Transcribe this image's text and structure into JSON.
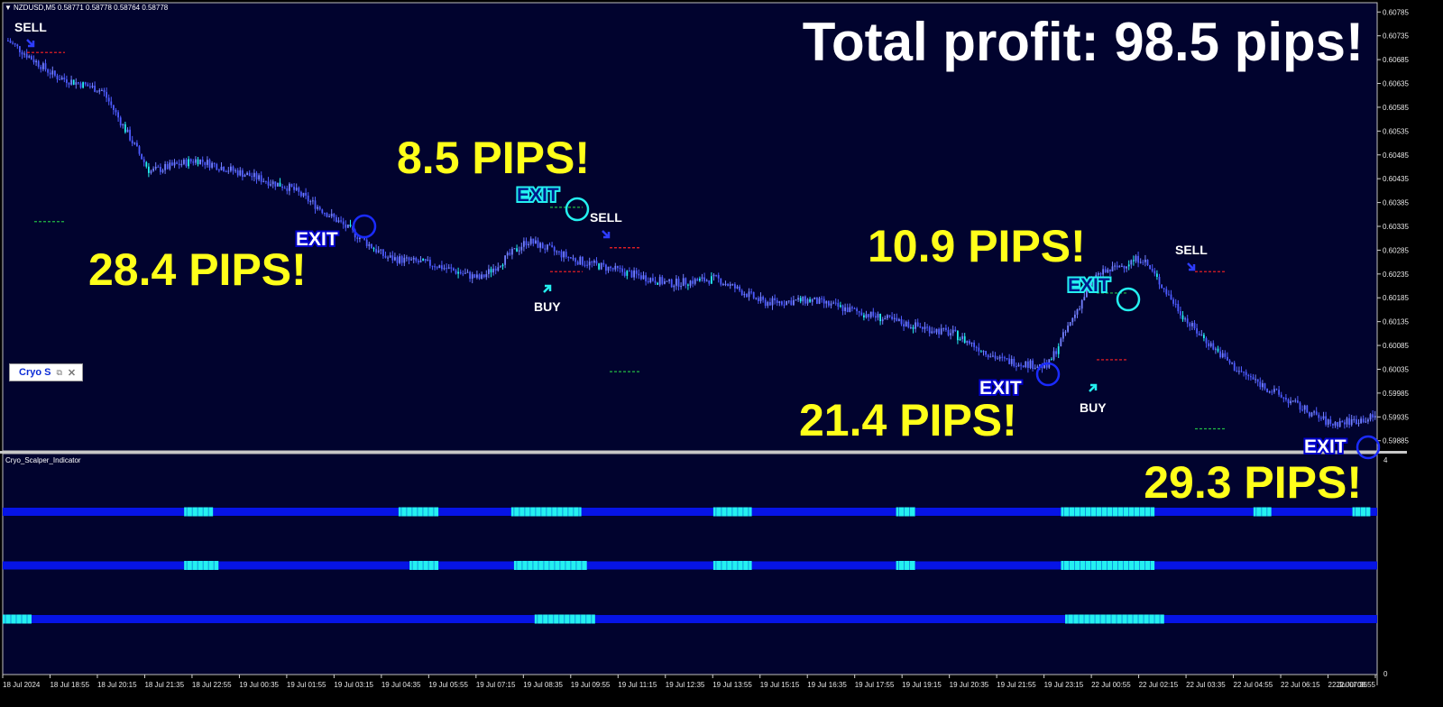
{
  "window": {
    "symbol_info": "NZDUSD,M5  0.58771 0.58778 0.58764 0.58778",
    "indicator_name": "Cryo_Scalper_Indicator",
    "indicator_axis_top": "4",
    "indicator_axis_bottom": "0"
  },
  "headline": "Total profit: 98.5 pips!",
  "price_axis": [
    "0.60785",
    "0.60735",
    "0.60685",
    "0.60635",
    "0.60585",
    "0.60535",
    "0.60485",
    "0.60435",
    "0.60385",
    "0.60335",
    "0.60285",
    "0.60235",
    "0.60185",
    "0.60135",
    "0.60085",
    "0.60035",
    "0.59985",
    "0.59935",
    "0.59885"
  ],
  "time_axis": [
    "18 Jul 2024",
    "18 Jul 18:55",
    "18 Jul 20:15",
    "18 Jul 21:35",
    "18 Jul 22:55",
    "19 Jul 00:35",
    "19 Jul 01:55",
    "19 Jul 03:15",
    "19 Jul 04:35",
    "19 Jul 05:55",
    "19 Jul 07:15",
    "19 Jul 08:35",
    "19 Jul 09:55",
    "19 Jul 11:15",
    "19 Jul 12:35",
    "19 Jul 13:55",
    "19 Jul 15:15",
    "19 Jul 16:35",
    "19 Jul 17:55",
    "19 Jul 19:15",
    "19 Jul 20:35",
    "19 Jul 21:55",
    "19 Jul 23:15",
    "22 Jul 00:55",
    "22 Jul 02:15",
    "22 Jul 03:35",
    "22 Jul 04:55",
    "22 Jul 06:15",
    "22 Jul 07:35",
    "22 Jul 08:55"
  ],
  "pips_labels": [
    "28.4 PIPS!",
    "8.5 PIPS!",
    "10.9 PIPS!",
    "21.4 PIPS!",
    "29.3 PIPS!"
  ],
  "signals": {
    "sell": "SELL",
    "buy": "BUY",
    "exit": "EXIT"
  },
  "indicator_widget": {
    "label": "Cryo S",
    "restore_icon": "restore-icon",
    "close_icon": "close-icon"
  },
  "colors": {
    "chart_bg": "#01032e",
    "candle": "#4d5bff",
    "highlight": "#24f0f0",
    "headline": "#ffffff",
    "pips": "#ffff1a",
    "indicator_line": "#0614e6",
    "sell_level": "#ff2222",
    "buy_level": "#22bb44"
  },
  "chart_data": {
    "type": "line",
    "x": [
      "18 Jul 2024",
      "18 Jul 18:55",
      "18 Jul 20:15",
      "18 Jul 21:35",
      "18 Jul 22:55",
      "19 Jul 00:35",
      "19 Jul 01:55",
      "19 Jul 03:15",
      "19 Jul 04:35",
      "19 Jul 05:55",
      "19 Jul 07:15",
      "19 Jul 08:35",
      "19 Jul 09:55",
      "19 Jul 11:15",
      "19 Jul 12:35",
      "19 Jul 13:55",
      "19 Jul 15:15",
      "19 Jul 16:35",
      "19 Jul 17:55",
      "19 Jul 19:15",
      "19 Jul 20:35",
      "19 Jul 21:55",
      "19 Jul 23:15",
      "22 Jul 00:55",
      "22 Jul 02:15",
      "22 Jul 03:35",
      "22 Jul 04:55",
      "22 Jul 06:15",
      "22 Jul 07:35",
      "22 Jul 08:55"
    ],
    "series": [
      {
        "values": [
          0.60725,
          0.6065,
          0.6062,
          0.6045,
          0.60475,
          0.60445,
          0.60415,
          0.60345,
          0.6027,
          0.60255,
          0.60225,
          0.60305,
          0.60265,
          0.6024,
          0.60215,
          0.60225,
          0.60175,
          0.6018,
          0.60155,
          0.6013,
          0.6011,
          0.60055,
          0.6004,
          0.6023,
          0.6027,
          0.6013,
          0.60035,
          0.59975,
          0.5992,
          0.59935
        ]
      }
    ],
    "ylim": [
      0.59875,
      0.60795
    ],
    "indicator": {
      "ylim": [
        0,
        4
      ],
      "rows": [
        {
          "level": 3,
          "highlights": [
            [
              0.132,
              0.153
            ],
            [
              0.288,
              0.317
            ],
            [
              0.37,
              0.421
            ],
            [
              0.517,
              0.545
            ],
            [
              0.65,
              0.664
            ],
            [
              0.77,
              0.838
            ],
            [
              0.91,
              0.923
            ],
            [
              0.982,
              0.995
            ]
          ]
        },
        {
          "level": 2,
          "highlights": [
            [
              0.132,
              0.157
            ],
            [
              0.296,
              0.317
            ],
            [
              0.372,
              0.425
            ],
            [
              0.517,
              0.545
            ],
            [
              0.65,
              0.664
            ],
            [
              0.77,
              0.838
            ]
          ]
        },
        {
          "level": 1,
          "highlights": [
            [
              0.0,
              0.021
            ],
            [
              0.387,
              0.431
            ],
            [
              0.773,
              0.845
            ]
          ]
        }
      ]
    }
  }
}
